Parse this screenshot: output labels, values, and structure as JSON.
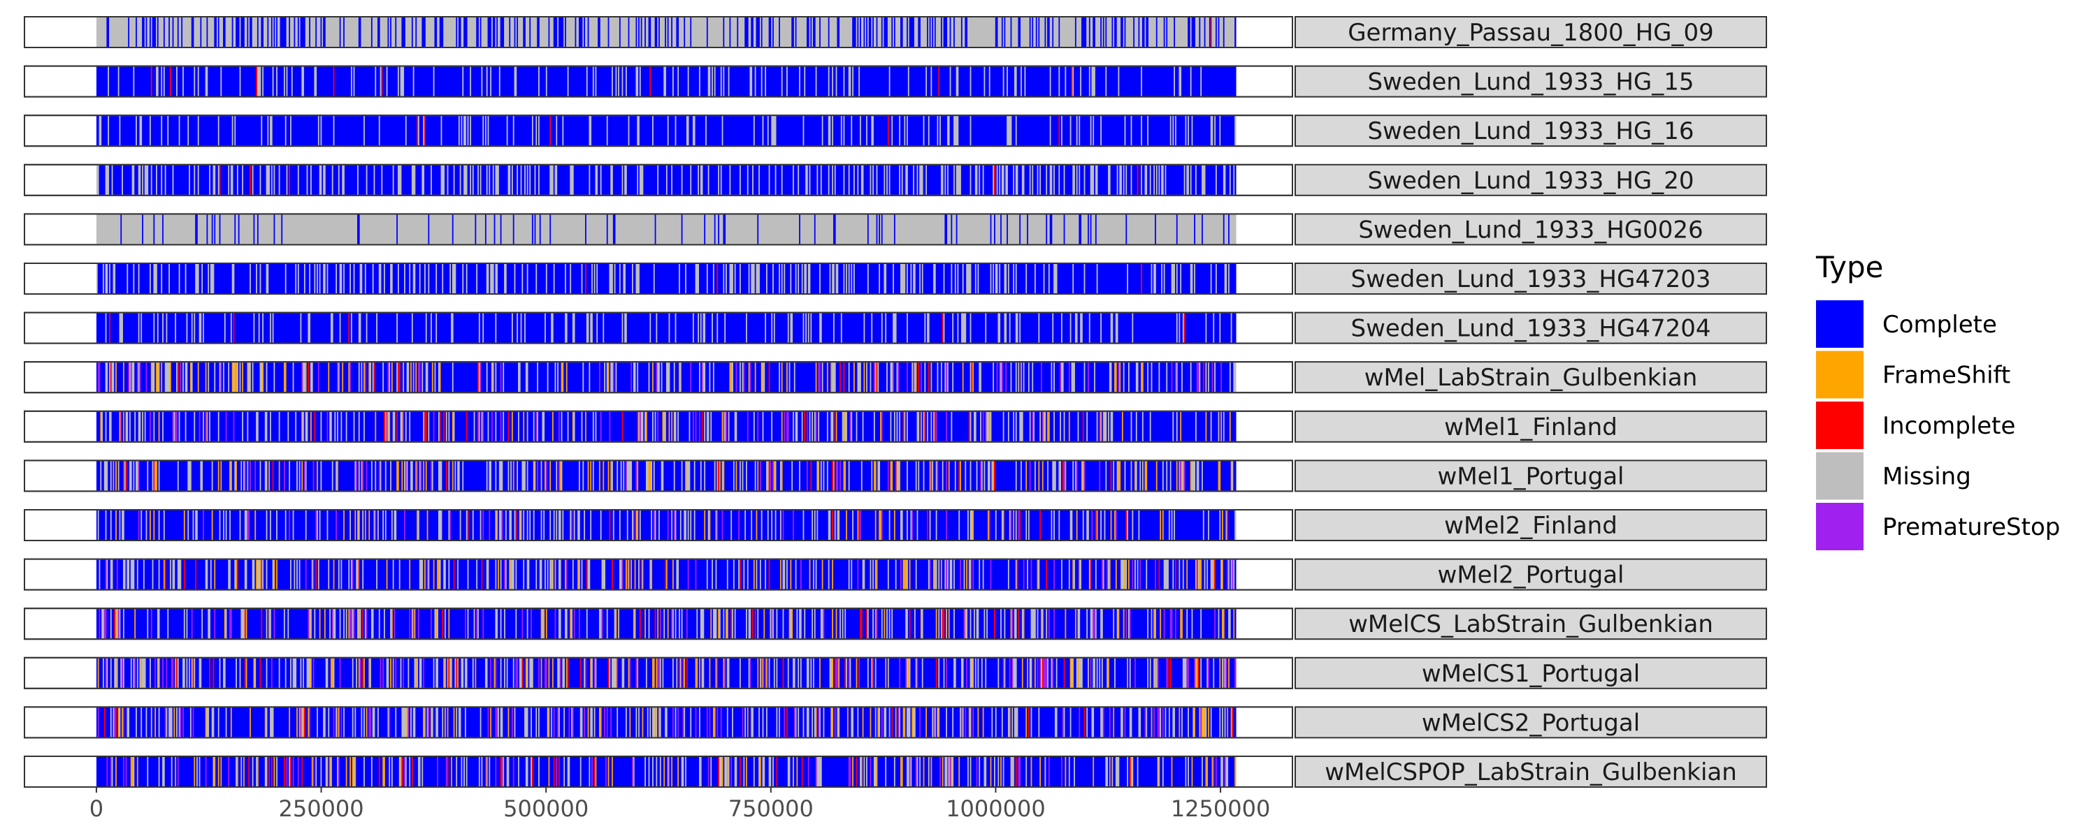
{
  "chart_data": {
    "type": "heatmap",
    "title": "",
    "xlabel": "",
    "ylabel": "",
    "xlim": [
      -80000,
      1330000
    ],
    "genome_end": 1267000,
    "x_ticks": [
      0,
      250000,
      500000,
      750000,
      1000000,
      1250000
    ],
    "x_tick_labels": [
      "0",
      "250000",
      "500000",
      "750000",
      "1000000",
      "1250000"
    ],
    "grid": false,
    "legend": {
      "title": "Type",
      "placement": "right",
      "items": [
        {
          "label": "Complete",
          "color": "#0000FF"
        },
        {
          "label": "FrameShift",
          "color": "#FFA500"
        },
        {
          "label": "Incomplete",
          "color": "#FF0000"
        },
        {
          "label": "Missing",
          "color": "#BEBEBE"
        },
        {
          "label": "PrematureStop",
          "color": "#A020F0"
        }
      ]
    },
    "samples": [
      {
        "name": "Germany_Passau_1800_HG_09",
        "composition": {
          "Complete": 0.3,
          "FrameShift": 0.0,
          "Incomplete": 0.002,
          "Missing": 0.698,
          "PrematureStop": 0.0
        }
      },
      {
        "name": "Sweden_Lund_1933_HG_15",
        "composition": {
          "Complete": 0.85,
          "FrameShift": 0.0,
          "Incomplete": 0.005,
          "Missing": 0.145,
          "PrematureStop": 0.0
        }
      },
      {
        "name": "Sweden_Lund_1933_HG_16",
        "composition": {
          "Complete": 0.85,
          "FrameShift": 0.0,
          "Incomplete": 0.005,
          "Missing": 0.145,
          "PrematureStop": 0.0
        }
      },
      {
        "name": "Sweden_Lund_1933_HG_20",
        "composition": {
          "Complete": 0.7,
          "FrameShift": 0.0,
          "Incomplete": 0.005,
          "Missing": 0.295,
          "PrematureStop": 0.0
        }
      },
      {
        "name": "Sweden_Lund_1933_HG0026",
        "composition": {
          "Complete": 0.1,
          "FrameShift": 0.0,
          "Incomplete": 0.0,
          "Missing": 0.9,
          "PrematureStop": 0.0
        }
      },
      {
        "name": "Sweden_Lund_1933_HG47203",
        "composition": {
          "Complete": 0.75,
          "FrameShift": 0.0,
          "Incomplete": 0.005,
          "Missing": 0.245,
          "PrematureStop": 0.0
        }
      },
      {
        "name": "Sweden_Lund_1933_HG47204",
        "composition": {
          "Complete": 0.84,
          "FrameShift": 0.0,
          "Incomplete": 0.01,
          "Missing": 0.15,
          "PrematureStop": 0.0
        }
      },
      {
        "name": "wMel_LabStrain_Gulbenkian",
        "composition": {
          "Complete": 0.66,
          "FrameShift": 0.08,
          "Incomplete": 0.02,
          "Missing": 0.19,
          "PrematureStop": 0.05
        }
      },
      {
        "name": "wMel1_Finland",
        "composition": {
          "Complete": 0.7,
          "FrameShift": 0.05,
          "Incomplete": 0.02,
          "Missing": 0.19,
          "PrematureStop": 0.04
        }
      },
      {
        "name": "wMel1_Portugal",
        "composition": {
          "Complete": 0.66,
          "FrameShift": 0.08,
          "Incomplete": 0.02,
          "Missing": 0.19,
          "PrematureStop": 0.05
        }
      },
      {
        "name": "wMel2_Finland",
        "composition": {
          "Complete": 0.68,
          "FrameShift": 0.05,
          "Incomplete": 0.02,
          "Missing": 0.21,
          "PrematureStop": 0.04
        }
      },
      {
        "name": "wMel2_Portugal",
        "composition": {
          "Complete": 0.7,
          "FrameShift": 0.06,
          "Incomplete": 0.02,
          "Missing": 0.18,
          "PrematureStop": 0.04
        }
      },
      {
        "name": "wMelCS_LabStrain_Gulbenkian",
        "composition": {
          "Complete": 0.7,
          "FrameShift": 0.06,
          "Incomplete": 0.02,
          "Missing": 0.18,
          "PrematureStop": 0.04
        }
      },
      {
        "name": "wMelCS1_Portugal",
        "composition": {
          "Complete": 0.62,
          "FrameShift": 0.07,
          "Incomplete": 0.02,
          "Missing": 0.22,
          "PrematureStop": 0.07
        }
      },
      {
        "name": "wMelCS2_Portugal",
        "composition": {
          "Complete": 0.66,
          "FrameShift": 0.06,
          "Incomplete": 0.02,
          "Missing": 0.2,
          "PrematureStop": 0.06
        }
      },
      {
        "name": "wMelCSPOP_LabStrain_Gulbenkian",
        "composition": {
          "Complete": 0.68,
          "FrameShift": 0.07,
          "Incomplete": 0.02,
          "Missing": 0.18,
          "PrematureStop": 0.05
        }
      }
    ]
  }
}
